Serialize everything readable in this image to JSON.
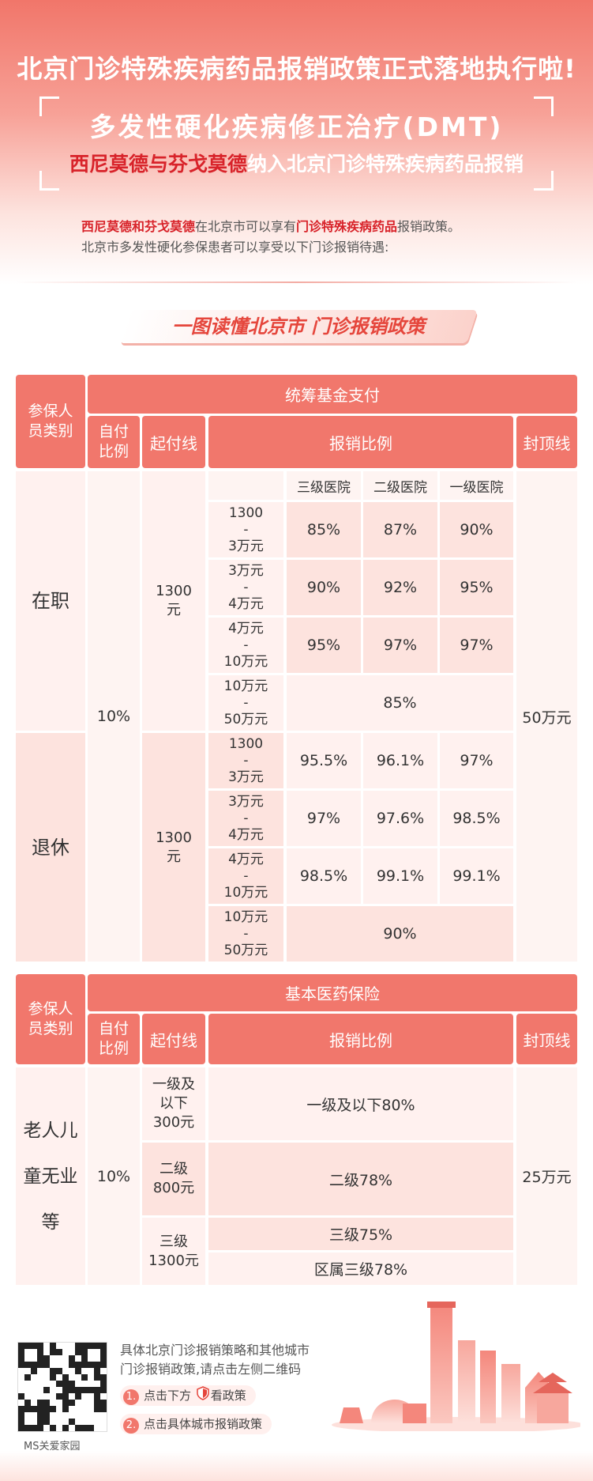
{
  "header": {
    "headline": "北京门诊特殊疾病药品报销政策正式落地执行啦!",
    "subtitle_line1": "多发性硬化疾病修正治疗(DMT)",
    "subtitle_line2_red": "西尼莫德与芬戈莫德",
    "subtitle_line2_rest": "纳入北京门诊特殊疾病药品报销"
  },
  "intro": {
    "l1_a": "西尼莫德和芬戈莫德",
    "l1_b": "在北京市可以享有",
    "l1_c": "门诊特殊疾病药品",
    "l1_d": "报销政策。",
    "l2": "北京市多发性硬化参保患者可以享受以下门诊报销待遇:"
  },
  "ribbon": "一图读懂北京市 门诊报销政策",
  "table1": {
    "h_category": "参保人员类别",
    "h_fund": "统筹基金支付",
    "h_selfpay": "自付比例",
    "h_deductible": "起付线",
    "h_ratio": "报销比例",
    "h_cap": "封顶线",
    "levels": [
      "三级医院",
      "二级医院",
      "一级医院"
    ],
    "self_pay": "10%",
    "cap": "50万元",
    "groups": [
      {
        "name_a": "在",
        "name_b": "职",
        "deductible_a": "1300",
        "deductible_b": "元",
        "rows": [
          {
            "r1": "1300",
            "r2": "-",
            "r3": "3万元",
            "v": [
              "85%",
              "87%",
              "90%"
            ]
          },
          {
            "r1": "3万元",
            "r2": "-",
            "r3": "4万元",
            "v": [
              "90%",
              "92%",
              "95%"
            ]
          },
          {
            "r1": "4万元",
            "r2": "-",
            "r3": "10万元",
            "v": [
              "95%",
              "97%",
              "97%"
            ]
          },
          {
            "r1": "10万元",
            "r2": "-",
            "r3": "50万元",
            "merged": "85%"
          }
        ]
      },
      {
        "name_a": "退",
        "name_b": "休",
        "deductible_a": "1300",
        "deductible_b": "元",
        "rows": [
          {
            "r1": "1300",
            "r2": "-",
            "r3": "3万元",
            "v": [
              "95.5%",
              "96.1%",
              "97%"
            ]
          },
          {
            "r1": "3万元",
            "r2": "-",
            "r3": "4万元",
            "v": [
              "97%",
              "97.6%",
              "98.5%"
            ]
          },
          {
            "r1": "4万元",
            "r2": "-",
            "r3": "10万元",
            "v": [
              "98.5%",
              "99.1%",
              "99.1%"
            ]
          },
          {
            "r1": "10万元",
            "r2": "-",
            "r3": "50万元",
            "merged": "90%"
          }
        ]
      }
    ]
  },
  "table2": {
    "h_category": "参保人员类别",
    "h_fund": "基本医药保险",
    "h_selfpay": "自付比例",
    "h_deductible": "起付线",
    "h_ratio": "报销比例",
    "h_cap": "封顶线",
    "group_a": "老人",
    "group_b": "儿童",
    "group_c": "无业等",
    "self_pay": "10%",
    "cap": "25万元",
    "rows": [
      {
        "d1": "一级及",
        "d2": "以下",
        "d3": "300元",
        "ratio": "一级及以下80%"
      },
      {
        "d1": "二级",
        "d2": "800元",
        "ratio": "二级78%"
      },
      {
        "d1": "三级",
        "d2": "1300元",
        "ratio_a": "三级75%",
        "ratio_b": "区属三级78%"
      }
    ]
  },
  "footer": {
    "qr_caption": "MS关爱家园",
    "text1": "具体北京门诊报销策略和其他城市",
    "text2": "门诊报销政策,请点击左侧二维码",
    "step1_num": "1.",
    "step1_a": "点击下方",
    "step1_b": "看政策",
    "step2_num": "2.",
    "step2": "点击具体城市报销政策"
  },
  "colors": {
    "accent": "#f1776c",
    "red": "#d8232a",
    "cell_dark": "#fde3de",
    "cell_light": "#fff1ef"
  }
}
